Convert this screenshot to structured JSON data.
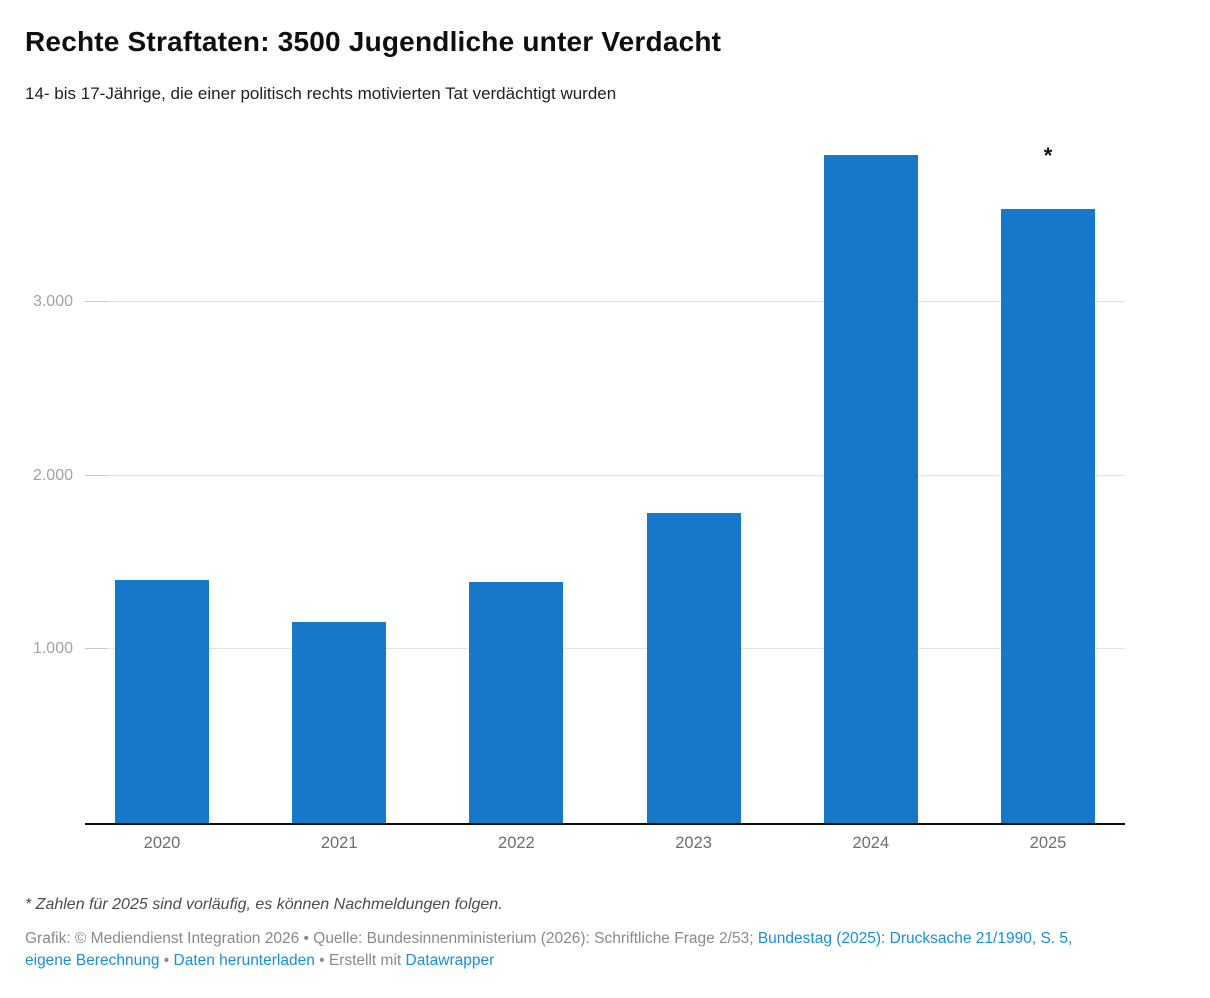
{
  "chart_data": {
    "type": "bar",
    "title": "Rechte Straftaten: 3500 Jugendliche unter Verdacht",
    "subtitle": "14- bis 17-Jährige, die einer politisch rechts motivierten Tat verdächtigt wurden",
    "categories": [
      "2020",
      "2021",
      "2022",
      "2023",
      "2024",
      "2025"
    ],
    "values": [
      1400,
      1155,
      1390,
      1785,
      3845,
      3535
    ],
    "ylim": [
      0,
      4000
    ],
    "yticks": [
      {
        "value": 1000,
        "label": "1.000"
      },
      {
        "value": 2000,
        "label": "2.000"
      },
      {
        "value": 3000,
        "label": "3.000"
      }
    ],
    "grid": true,
    "legend": "none",
    "xlabel": "",
    "ylabel": "",
    "annotation": {
      "category_index": 5,
      "text": "*"
    }
  },
  "footnote": "* Zahlen für 2025 sind vorläufig, es können Nachmeldungen folgen.",
  "attribution": {
    "segments": [
      {
        "type": "text",
        "name": "attribution-text",
        "text": "Grafik: © Mediendienst Integration 2026 • Quelle: Bundesinnenministerium (2026): Schriftliche Frage 2/53; "
      },
      {
        "type": "link",
        "name": "bundestag-drucksache-link",
        "text": "Bundestag (2025): Drucksache 21/1990, S. 5, eigene Berechnung"
      },
      {
        "type": "text",
        "name": "attribution-separator",
        "text": " • "
      },
      {
        "type": "link",
        "name": "daten-herunterladen-link",
        "text": "Daten herunterladen"
      },
      {
        "type": "text",
        "name": "attribution-text",
        "text": " • Erstellt mit "
      },
      {
        "type": "link",
        "name": "datawrapper-link",
        "text": "Datawrapper"
      }
    ]
  },
  "colors": {
    "bar": "#1777c8",
    "link": "#1a8fd4",
    "grid": "#e3e3e3",
    "axis": "#0d0d0d",
    "y_tick_text": "#a2a2a2",
    "x_tick_text": "#6e6e6e",
    "footnote_text": "#4d4d4d",
    "attribution_text": "#8a8a8a",
    "title_text": "#0f0f0f"
  }
}
